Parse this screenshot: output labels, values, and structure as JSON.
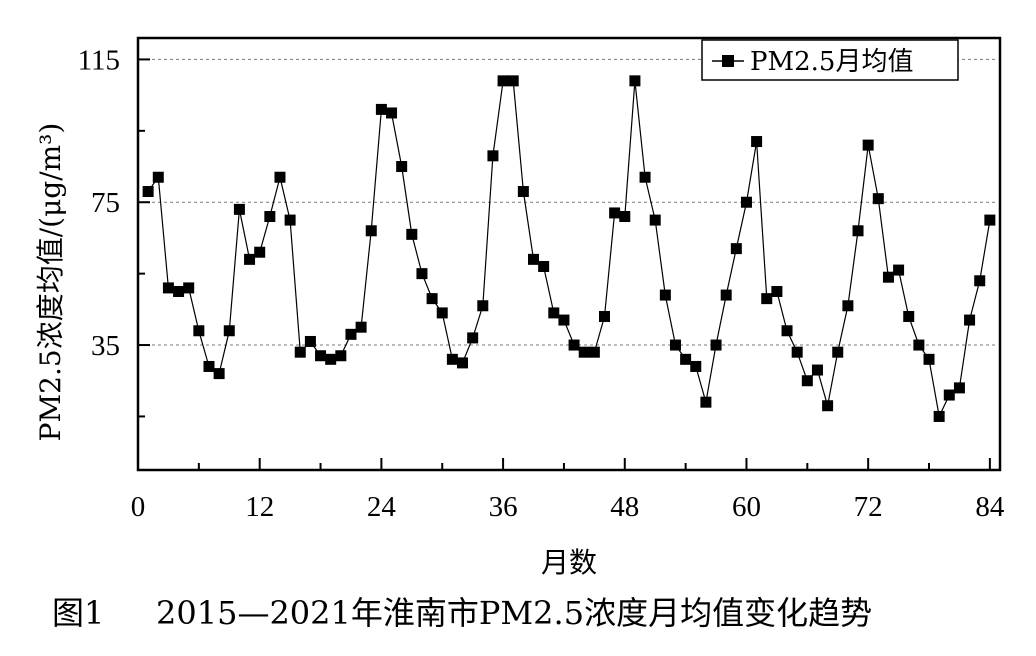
{
  "chart_data": {
    "type": "line",
    "title": "",
    "xlabel": "月数",
    "ylabel": "PM2.5浓度均值/(μg/m³)",
    "xlim": [
      0,
      85
    ],
    "ylim": [
      0,
      121
    ],
    "xticks": [
      0,
      12,
      24,
      36,
      48,
      60,
      72,
      84
    ],
    "yticks": [
      35,
      75,
      115
    ],
    "grid_y": [
      35,
      75,
      115
    ],
    "grid": "dashed horizontal at labeled y ticks",
    "legend_position": "top-right",
    "series": [
      {
        "name": "PM2.5月均值",
        "marker": "square",
        "x": [
          1,
          2,
          3,
          4,
          5,
          6,
          7,
          8,
          9,
          10,
          11,
          12,
          13,
          14,
          15,
          16,
          17,
          18,
          19,
          20,
          21,
          22,
          23,
          24,
          25,
          26,
          27,
          28,
          29,
          30,
          31,
          32,
          33,
          34,
          35,
          36,
          37,
          38,
          39,
          40,
          41,
          42,
          43,
          44,
          45,
          46,
          47,
          48,
          49,
          50,
          51,
          52,
          53,
          54,
          55,
          56,
          57,
          58,
          59,
          60,
          61,
          62,
          63,
          64,
          65,
          66,
          67,
          68,
          69,
          70,
          71,
          72,
          73,
          74,
          75,
          76,
          77,
          78,
          79,
          80,
          81,
          82,
          83,
          84
        ],
        "values": [
          78,
          82,
          51,
          50,
          51,
          39,
          29,
          27,
          39,
          73,
          59,
          61,
          71,
          82,
          70,
          33,
          36,
          32,
          31,
          32,
          38,
          40,
          67,
          101,
          100,
          85,
          66,
          55,
          48,
          44,
          31,
          30,
          37,
          46,
          88,
          109,
          109,
          78,
          59,
          57,
          44,
          42,
          35,
          33,
          33,
          43,
          72,
          71,
          109,
          82,
          70,
          49,
          35,
          31,
          29,
          19,
          35,
          49,
          62,
          75,
          92,
          48,
          50,
          39,
          33,
          25,
          28,
          18,
          33,
          46,
          67,
          91,
          76,
          54,
          56,
          43,
          35,
          31,
          15,
          21,
          23,
          42,
          53,
          70
        ]
      }
    ]
  },
  "legend": {
    "label": "PM2.5月均值",
    "line_color": "#000000"
  },
  "caption": {
    "figure": "图1",
    "text": "2015—2021年淮南市PM2.5浓度月均值变化趋势"
  }
}
